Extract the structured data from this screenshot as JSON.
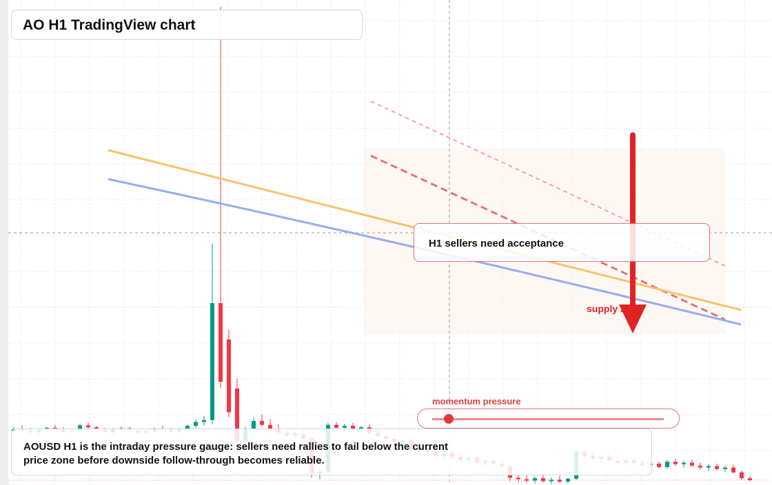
{
  "header": {
    "title": "AO H1 TradingView chart"
  },
  "chart_data": {
    "type": "candlestick",
    "ylim": [
      0,
      100
    ],
    "candles": [
      [
        11,
        12,
        10.5,
        11.5
      ],
      [
        11.5,
        12.3,
        11,
        11.2
      ],
      [
        11.2,
        11.8,
        10.6,
        10.9
      ],
      [
        10.9,
        11.6,
        10.4,
        11.3
      ],
      [
        11.3,
        12,
        11,
        11.8
      ],
      [
        11.8,
        12.4,
        11.2,
        11.4
      ],
      [
        11.4,
        11.9,
        10.8,
        11
      ],
      [
        11,
        11.5,
        10.5,
        11.2
      ],
      [
        11.2,
        12.6,
        11,
        12.3
      ],
      [
        12.3,
        12.8,
        11.6,
        11.9
      ],
      [
        11.9,
        12.2,
        11.1,
        11.4
      ],
      [
        11.4,
        11.8,
        10.7,
        10.9
      ],
      [
        10.9,
        11.7,
        10.6,
        11.5
      ],
      [
        11.5,
        12.1,
        11.2,
        11.7
      ],
      [
        11.7,
        12,
        11,
        11.2
      ],
      [
        11.2,
        11.6,
        10.5,
        10.8
      ],
      [
        10.8,
        11.4,
        10.3,
        11.1
      ],
      [
        11.1,
        11.9,
        10.9,
        11.6
      ],
      [
        11.6,
        12.2,
        11.3,
        11.4
      ],
      [
        11.4,
        11.8,
        10.8,
        11
      ],
      [
        11,
        11.7,
        10.6,
        11.5
      ],
      [
        11.5,
        12.5,
        11.2,
        12.2
      ],
      [
        12.2,
        13.5,
        11.8,
        13
      ],
      [
        13,
        14.2,
        12.3,
        13.4
      ],
      [
        13.4,
        49.7,
        12.5,
        37.5
      ],
      [
        37.5,
        98.6,
        20,
        21.3
      ],
      [
        30,
        32,
        14,
        15
      ],
      [
        19.9,
        22,
        8,
        9
      ],
      [
        9,
        12,
        8,
        11.5
      ],
      [
        11.5,
        14,
        10.8,
        13.2
      ],
      [
        13.2,
        14.5,
        12,
        12.4
      ],
      [
        12.4,
        13.6,
        11,
        11.6
      ],
      [
        11.6,
        12.5,
        10.4,
        10.8
      ],
      [
        10.8,
        11.6,
        9.8,
        10.2
      ],
      [
        10.2,
        11,
        9.5,
        10.6
      ],
      [
        10.6,
        11.2,
        9.2,
        9.6
      ],
      [
        9.6,
        10,
        1.5,
        2.3
      ],
      [
        2.3,
        3.5,
        1.2,
        2.8
      ],
      [
        2.8,
        12.8,
        2.4,
        12.4
      ],
      [
        12.4,
        13,
        11.2,
        11.8
      ],
      [
        11.8,
        12.6,
        11,
        12.2
      ],
      [
        12.2,
        12.8,
        11.3,
        11.5
      ],
      [
        11.5,
        12.2,
        10.8,
        11.9
      ],
      [
        11.9,
        12.5,
        10.5,
        10.8
      ],
      [
        10.8,
        11.6,
        9.8,
        10.1
      ],
      [
        10.1,
        11,
        9.2,
        9.5
      ],
      [
        9.5,
        10.4,
        8.4,
        8.8
      ],
      [
        8.8,
        9.6,
        7.6,
        9.2
      ],
      [
        9.2,
        9.8,
        6.8,
        7.2
      ],
      [
        7.2,
        8,
        6.1,
        7.6
      ],
      [
        7.6,
        8.4,
        6.4,
        6.8
      ],
      [
        6.8,
        7.5,
        5.6,
        6
      ],
      [
        6,
        7,
        5.2,
        6.6
      ],
      [
        6.6,
        7.2,
        5.4,
        5.8
      ],
      [
        5.8,
        6.6,
        4.8,
        5.2
      ],
      [
        5.2,
        6,
        4.5,
        5.6
      ],
      [
        5.6,
        6.2,
        4.2,
        4.6
      ],
      [
        4.6,
        5.5,
        3.8,
        5
      ],
      [
        5,
        5.6,
        4,
        4.4
      ],
      [
        4.4,
        5,
        3.5,
        3.9
      ],
      [
        3.9,
        4.4,
        0.8,
        1.5
      ],
      [
        1.5,
        2.2,
        0.6,
        1.2
      ],
      [
        1.2,
        2,
        0.4,
        0.9
      ],
      [
        0.9,
        1.8,
        0.3,
        1.4
      ],
      [
        1.4,
        2,
        0.5,
        0.8
      ],
      [
        0.8,
        1.6,
        0.2,
        1.1
      ],
      [
        1.1,
        1.9,
        0.4,
        0.7
      ],
      [
        0.7,
        1.5,
        0.3,
        1.3
      ],
      [
        1.3,
        7.5,
        1,
        6.9
      ],
      [
        6.9,
        7.8,
        5.5,
        6
      ],
      [
        6,
        6.8,
        5,
        5.4
      ],
      [
        5.4,
        6.2,
        4.6,
        5.8
      ],
      [
        5.8,
        6.4,
        4.8,
        5
      ],
      [
        5,
        5.8,
        4.2,
        4.6
      ],
      [
        4.6,
        5.5,
        4,
        5.1
      ],
      [
        5.1,
        5.7,
        4.3,
        4.5
      ],
      [
        4.5,
        5.2,
        3.8,
        4.1
      ],
      [
        4.1,
        4.9,
        3.5,
        4.4
      ],
      [
        4.4,
        4.8,
        3.4,
        3.7
      ],
      [
        3.7,
        5.2,
        3.3,
        4.8
      ],
      [
        4.8,
        5.4,
        4,
        4.3
      ],
      [
        4.3,
        5,
        3.6,
        4.6
      ],
      [
        4.6,
        5.1,
        3.7,
        4
      ],
      [
        4,
        4.6,
        3.2,
        3.6
      ],
      [
        3.6,
        4.3,
        2.9,
        3.9
      ],
      [
        3.9,
        4.4,
        3,
        3.3
      ],
      [
        3.3,
        4,
        2.7,
        3.6
      ],
      [
        3.6,
        4.2,
        2.4,
        2.6
      ],
      [
        2.6,
        3,
        1,
        1.4
      ],
      [
        1.4,
        1.9,
        0.7,
        1
      ]
    ],
    "up_color": "#089981",
    "down_color": "#f23645"
  },
  "annotations": {
    "callout": "H1 sellers need acceptance",
    "zone_label": "supply zone",
    "slider_label": "momentum pressure",
    "note": "AOUSD H1 is the intraday pressure gauge: sellers need rallies to fail below the current price zone before downside follow-through becomes reliable."
  }
}
